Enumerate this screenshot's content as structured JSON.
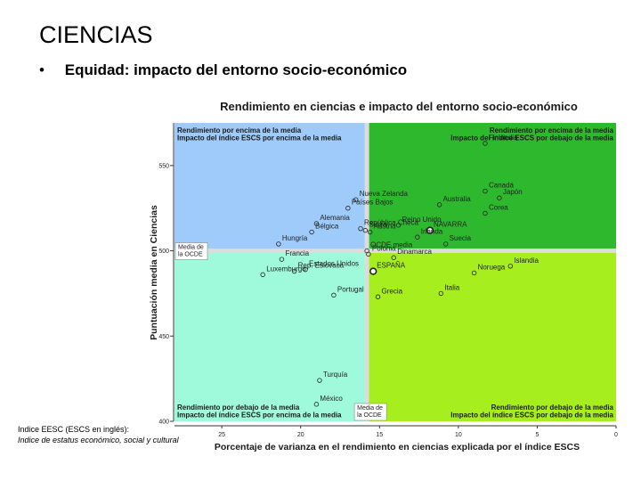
{
  "slide": {
    "title": "CIENCIAS",
    "bullet": "•",
    "subtitle": "Equidad: impacto del entorno socio-económico"
  },
  "footnote": {
    "line1": "Indice EESC (ESCS en inglés):",
    "line2": "Indice de estatus económico, social y cultural"
  },
  "colors": {
    "q_top_left": "#9ecbfa",
    "q_top_right": "#2eb82e",
    "q_bottom_left": "#9ffadb",
    "q_bottom_right": "#a6ee1d",
    "divider": "#dcdcdc"
  },
  "chart_data": {
    "type": "scatter",
    "title": "Rendimiento en ciencias e impacto del entorno socio-económico",
    "xlabel": "Porcentaje de varianza en el rendimiento en ciencias explicada por el índice ESCS",
    "ylabel": "Puntuación media en Ciencias",
    "x_reversed": true,
    "xlim": [
      28,
      0
    ],
    "ylim": [
      400,
      575
    ],
    "x_ticks": [
      25,
      20,
      15,
      10,
      5,
      0
    ],
    "y_ticks": [
      550,
      500,
      450,
      400
    ],
    "mean_x": 15.8,
    "mean_y": 500,
    "quadrants": {
      "top_left": [
        "Rendimiento por encima de la media",
        "Impacto del índice ESCS por encima de la media"
      ],
      "top_right": [
        "Rendimiento por encima de la media",
        "Impacto del índice ESCS por debajo de la media"
      ],
      "bottom_left": [
        "Rendimiento por debajo de la media",
        "Impacto del índice ESCS por encima de la media"
      ],
      "bottom_right": [
        "Rendimiento por debajo de la media",
        "Impacto del índice ESCS por debajo de la media"
      ]
    },
    "mean_labels": {
      "y_mean": [
        "Media de",
        "la OCDE"
      ],
      "x_mean": [
        "Media de",
        "la OCDE"
      ]
    },
    "points": [
      {
        "label": "Finlandia",
        "x": 8.3,
        "y": 563
      },
      {
        "label": "Canadá",
        "x": 8.3,
        "y": 535
      },
      {
        "label": "Japón",
        "x": 7.4,
        "y": 531
      },
      {
        "label": "Nueva Zelanda",
        "x": 16.5,
        "y": 530
      },
      {
        "label": "Australia",
        "x": 11.2,
        "y": 527
      },
      {
        "label": "Países Bajos",
        "x": 17.0,
        "y": 525
      },
      {
        "label": "Corea",
        "x": 8.3,
        "y": 522
      },
      {
        "label": "Alemania",
        "x": 19.0,
        "y": 516
      },
      {
        "label": "República Checa",
        "x": 16.2,
        "y": 513
      },
      {
        "label": "Reino Unido",
        "x": 13.8,
        "y": 515
      },
      {
        "label": "NAVARRA",
        "x": 11.8,
        "y": 512,
        "highlight": true
      },
      {
        "label": "Hungría",
        "x": 21.4,
        "y": 504
      },
      {
        "label": "Bélgica",
        "x": 19.3,
        "y": 511
      },
      {
        "label": "Suiza",
        "x": 15.9,
        "y": 512
      },
      {
        "label": "Irlanda",
        "x": 12.6,
        "y": 508
      },
      {
        "label": "Austria",
        "x": 15.6,
        "y": 511
      },
      {
        "label": "Suecia",
        "x": 10.8,
        "y": 504
      },
      {
        "label": "Francia",
        "x": 21.2,
        "y": 495
      },
      {
        "label": "OCDE media",
        "x": 15.8,
        "y": 500
      },
      {
        "label": "Dinamarca",
        "x": 14.1,
        "y": 496
      },
      {
        "label": "Polonia",
        "x": 15.7,
        "y": 498
      },
      {
        "label": "Islandia",
        "x": 6.7,
        "y": 491
      },
      {
        "label": "Rep. Eslovaca",
        "x": 20.4,
        "y": 488
      },
      {
        "label": "Luxemburgo",
        "x": 22.4,
        "y": 486
      },
      {
        "label": "Estados Unidos",
        "x": 19.7,
        "y": 489
      },
      {
        "label": "ESPAÑA",
        "x": 15.4,
        "y": 488,
        "highlight": true
      },
      {
        "label": "Noruega",
        "x": 9.0,
        "y": 487
      },
      {
        "label": "Portugal",
        "x": 17.9,
        "y": 474
      },
      {
        "label": "Grecia",
        "x": 15.1,
        "y": 473
      },
      {
        "label": "Italia",
        "x": 11.1,
        "y": 475
      },
      {
        "label": "Turquía",
        "x": 18.8,
        "y": 424
      },
      {
        "label": "México",
        "x": 19.0,
        "y": 410
      }
    ]
  }
}
